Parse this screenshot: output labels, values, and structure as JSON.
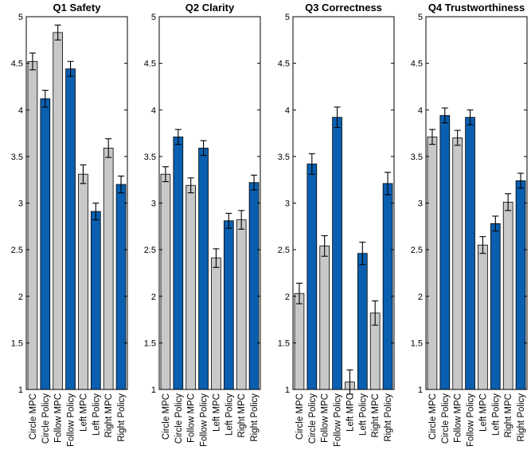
{
  "chart_data": [
    {
      "type": "bar",
      "title": "Q1 Safety",
      "categories": [
        "Circle MPC",
        "Circle Policy",
        "Follow MPC",
        "Follow Policy",
        "Left MPC",
        "Left Policy",
        "Right MPC",
        "Right Policy"
      ],
      "values": [
        4.52,
        4.12,
        4.83,
        4.44,
        3.31,
        2.91,
        3.59,
        3.2
      ],
      "errors": [
        0.09,
        0.09,
        0.08,
        0.08,
        0.1,
        0.09,
        0.1,
        0.09
      ],
      "ylim": [
        1,
        5
      ],
      "yticks": [
        "1",
        "1.5",
        "2",
        "2.5",
        "3",
        "3.5",
        "4",
        "4.5",
        "5"
      ],
      "colors": [
        "#c8c8c8",
        "#0a5fb0",
        "#c8c8c8",
        "#0a5fb0",
        "#c8c8c8",
        "#0a5fb0",
        "#c8c8c8",
        "#0a5fb0"
      ]
    },
    {
      "type": "bar",
      "title": "Q2 Clarity",
      "categories": [
        "Circle MPC",
        "Circle Policy",
        "Follow MPC",
        "Follow Policy",
        "Left MPC",
        "Left Policy",
        "Right MPC",
        "Right Policy"
      ],
      "values": [
        3.31,
        3.71,
        3.19,
        3.59,
        2.41,
        2.81,
        2.82,
        3.22
      ],
      "errors": [
        0.08,
        0.08,
        0.08,
        0.08,
        0.1,
        0.08,
        0.1,
        0.08
      ],
      "ylim": [
        1,
        5
      ],
      "yticks": [
        "1",
        "1.5",
        "2",
        "2.5",
        "3",
        "3.5",
        "4",
        "4.5",
        "5"
      ],
      "colors": [
        "#c8c8c8",
        "#0a5fb0",
        "#c8c8c8",
        "#0a5fb0",
        "#c8c8c8",
        "#0a5fb0",
        "#c8c8c8",
        "#0a5fb0"
      ]
    },
    {
      "type": "bar",
      "title": "Q3 Correctness",
      "categories": [
        "Circle MPC",
        "Circle Policy",
        "Follow MPC",
        "Follow Policy",
        "Left MPC",
        "Left Policy",
        "Right MPC",
        "Right Policy"
      ],
      "values": [
        2.03,
        3.42,
        2.54,
        3.92,
        1.08,
        2.46,
        1.82,
        3.21
      ],
      "errors": [
        0.11,
        0.11,
        0.11,
        0.11,
        0.13,
        0.12,
        0.13,
        0.12
      ],
      "ylim": [
        1,
        5
      ],
      "yticks": [
        "1",
        "1.5",
        "2",
        "2.5",
        "3",
        "3.5",
        "4",
        "4.5",
        "5"
      ],
      "colors": [
        "#c8c8c8",
        "#0a5fb0",
        "#c8c8c8",
        "#0a5fb0",
        "#c8c8c8",
        "#0a5fb0",
        "#c8c8c8",
        "#0a5fb0"
      ]
    },
    {
      "type": "bar",
      "title": "Q4 Trustworthiness",
      "categories": [
        "Circle MPC",
        "Circle Policy",
        "Follow MPC",
        "Follow Policy",
        "Left MPC",
        "Left Policy",
        "Right MPC",
        "Right Policy"
      ],
      "values": [
        3.71,
        3.94,
        3.7,
        3.92,
        2.55,
        2.78,
        3.01,
        3.24
      ],
      "errors": [
        0.08,
        0.08,
        0.08,
        0.08,
        0.09,
        0.08,
        0.09,
        0.08
      ],
      "ylim": [
        1,
        5
      ],
      "yticks": [
        "1",
        "1.5",
        "2",
        "2.5",
        "3",
        "3.5",
        "4",
        "4.5",
        "5"
      ],
      "colors": [
        "#c8c8c8",
        "#0a5fb0",
        "#c8c8c8",
        "#0a5fb0",
        "#c8c8c8",
        "#0a5fb0",
        "#c8c8c8",
        "#0a5fb0"
      ]
    }
  ]
}
